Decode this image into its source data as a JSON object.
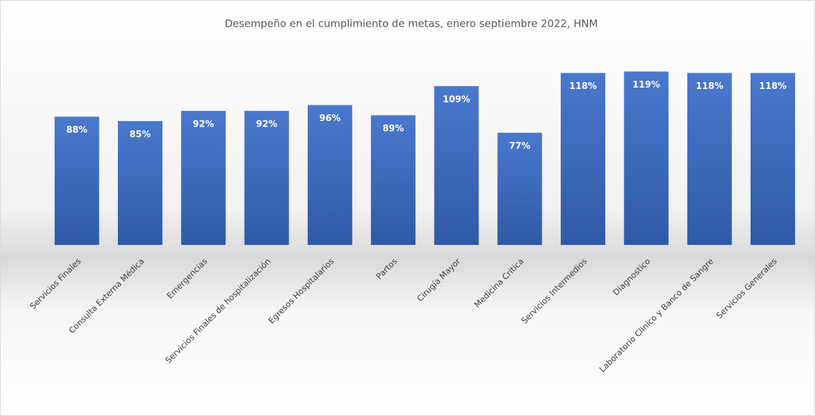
{
  "chart_data": {
    "type": "bar",
    "title": "Desempeño en el cumplimiento de metas, enero septiembre 2022, HNM",
    "categories": [
      "Servicios Finales",
      "Consulta Externa Médica",
      "Emergencias",
      "Servicios Finales de hospitalización",
      "Egresos Hospitalarios",
      "Partos",
      "Cirugía Mayor",
      "Medicina Critica",
      "Servicios Intermedios",
      "Diagnostico",
      "Laboratorio Clinico y Banco de Sangre",
      "Servicios Generales"
    ],
    "values": [
      88,
      85,
      92,
      92,
      96,
      89,
      109,
      77,
      118,
      119,
      118,
      118
    ],
    "value_labels": [
      "88%",
      "85%",
      "92%",
      "92%",
      "96%",
      "89%",
      "109%",
      "77%",
      "118%",
      "119%",
      "118%",
      "118%"
    ],
    "color": "#4472c4"
  }
}
